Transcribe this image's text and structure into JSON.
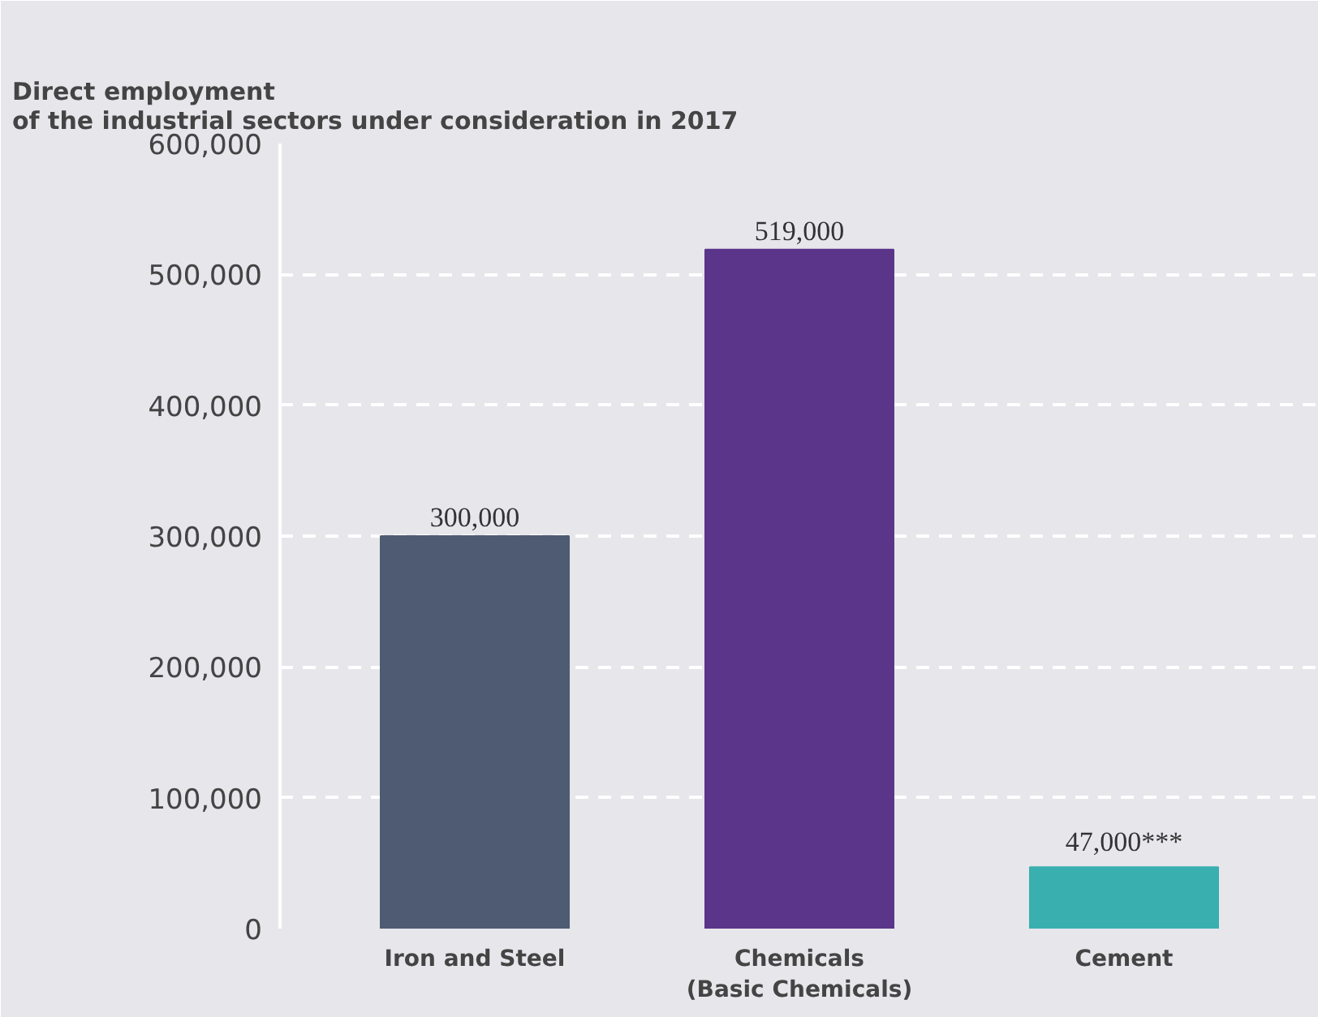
{
  "chart_data": {
    "type": "bar",
    "title": "Direct employment\nof the industrial sectors under consideration in 2017",
    "categories": [
      "Iron and Steel",
      "Chemicals\n(Basic Chemicals)",
      "Cement"
    ],
    "values": [
      300000,
      519000,
      47000
    ],
    "colors": [
      "#4f5b72",
      "#5b3589",
      "#3aafb0"
    ],
    "value_labels": [
      "300,000",
      "519,000",
      "47,000***"
    ],
    "ylim": [
      0,
      600000
    ],
    "yticks": [
      0,
      {
        "value": 100000,
        "label": "100,000"
      },
      {
        "value": 200000,
        "label": "200,000"
      },
      {
        "value": 300000,
        "label": "300,000"
      },
      {
        "value": 400000,
        "label": "400,000"
      },
      {
        "value": 500000,
        "label": "500,000"
      },
      {
        "value": 600000,
        "label": "600,000"
      }
    ],
    "grid": "y"
  }
}
